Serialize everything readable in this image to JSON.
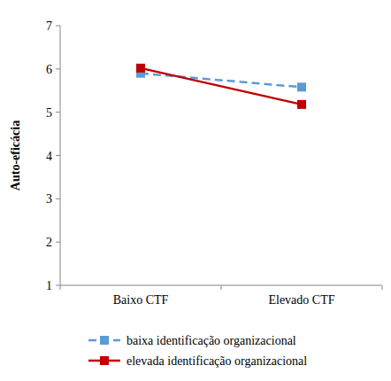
{
  "chart_data": {
    "type": "line",
    "categories": [
      "Baixo CTF",
      "Elevado CTF"
    ],
    "y_label": "Auto-eficácia",
    "ylim": [
      1,
      7
    ],
    "yticks": [
      1,
      2,
      3,
      4,
      5,
      6,
      7
    ],
    "grid": false,
    "legend": "bottom",
    "series": [
      {
        "name": "baixa identificação organizacional",
        "color": "#5b9bd5",
        "line_style": "dashed",
        "marker": "square",
        "values": [
          5.9,
          5.58
        ]
      },
      {
        "name": "elevada identificação organizacional",
        "color": "#c00000",
        "line_style": "solid",
        "marker": "square",
        "values": [
          6.02,
          5.18
        ]
      }
    ]
  }
}
